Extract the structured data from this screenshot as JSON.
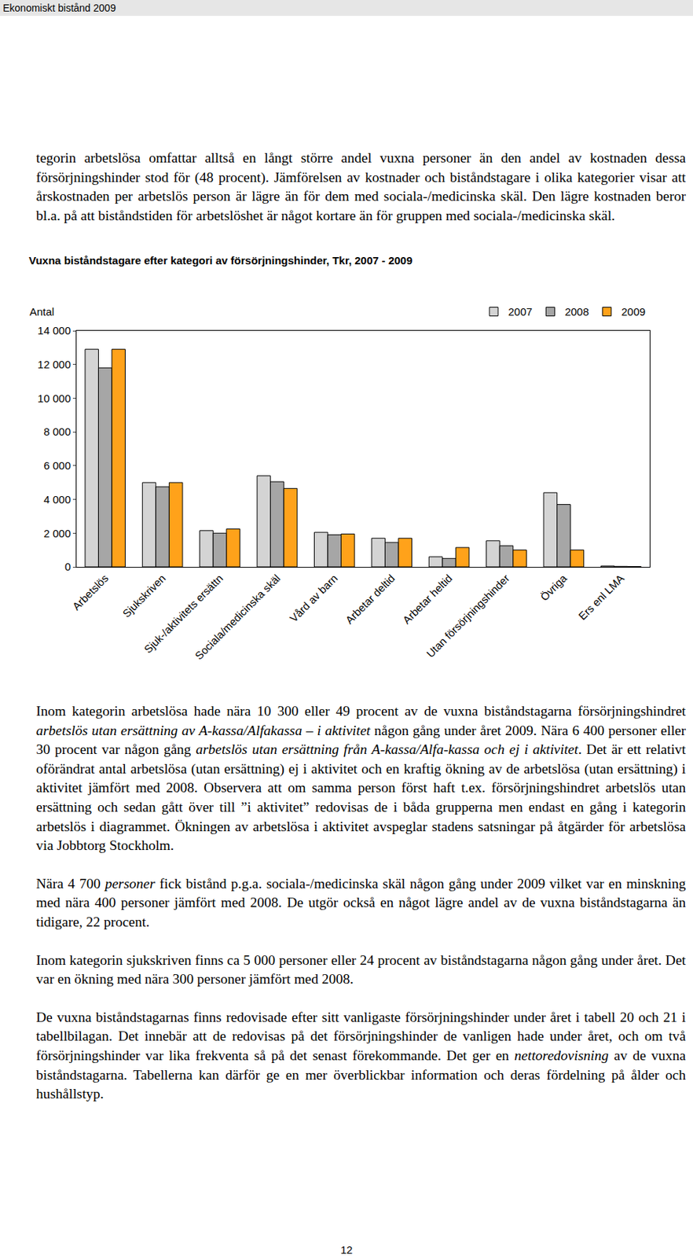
{
  "header": "Ekonomiskt bistånd 2009",
  "paragraphs": [
    [
      "tegorin arbetslösa omfattar alltså en långt större andel vuxna personer än den andel av kostnaden dessa försörjningshinder stod för (48 procent). Jämförelsen av kostnader och biståndstagare i olika kategorier visar att årskostnaden per arbetslös person är lägre än för dem med sociala-/medicinska skäl. Den lägre kostnaden beror bl.a. på att biståndstiden för arbetslöshet är något kortare än för gruppen med sociala-/medicinska skäl."
    ]
  ],
  "chart_data": {
    "type": "bar",
    "title": "Vuxna biståndstagare efter kategori av försörjningshinder, Tkr, 2007 - 2009",
    "y_label": "Antal",
    "categories": [
      "Arbetslös",
      "Sjukskriven",
      "Sjuk-/aktivitets ersättn",
      "Sociala/medicinska skäl",
      "Vård av barn",
      "Arbetar deltid",
      "Arbetar heltid",
      "Utan försörjningshinder",
      "Övriga",
      "Ers enl LMA"
    ],
    "series": [
      {
        "name": "2007",
        "color": "#d4d4d4",
        "values": [
          12900,
          5000,
          2150,
          5400,
          2050,
          1700,
          600,
          1550,
          4400,
          50
        ]
      },
      {
        "name": "2008",
        "color": "#a6a6a6",
        "values": [
          11800,
          4750,
          2000,
          5050,
          1900,
          1450,
          500,
          1250,
          3700,
          30
        ]
      },
      {
        "name": "2009",
        "color": "#ffa21a",
        "values": [
          12900,
          5000,
          2250,
          4650,
          1950,
          1700,
          1150,
          1000,
          1000,
          20
        ]
      }
    ],
    "ylim": [
      0,
      14000
    ],
    "yticks": [
      0,
      {
        "value": 2000,
        "label": "2 000"
      },
      {
        "value": 4000,
        "label": "4 000"
      },
      {
        "value": 6000,
        "label": "6 000"
      },
      {
        "value": 8000,
        "label": "8 000"
      },
      {
        "value": 10000,
        "label": "10 000"
      },
      {
        "value": 12000,
        "label": "12 000"
      },
      {
        "value": 14000,
        "label": "14 000"
      }
    ],
    "grid": false,
    "legend": "top-right"
  },
  "paragraphs_after": [
    [
      "Inom kategorin arbetslösa hade nära 10 300 eller 49 procent av de vuxna biståndstagarna försörjningshindret ",
      {
        "italic": "arbetslös utan ersättning av A-kassa/Alfakassa – i aktivitet"
      },
      " någon gång under året 2009. Nära 6 400 personer eller 30 procent var någon gång ",
      {
        "italic": "arbetslös utan ersättning från A-kassa/Alfa-kassa och ej i aktivitet"
      },
      ". Det är ett relativt oförändrat antal arbetslösa (utan ersättning) ej i aktivitet och en kraftig ökning av de arbetslösa (utan ersättning) i aktivitet jämfört med 2008. Observera att om samma person först haft t.ex. försörjningshindret arbetslös utan ersättning och sedan gått över till ”i aktivitet” redovisas de i båda grupperna men endast en gång i kategorin arbetslös i diagrammet. Ökningen av arbetslösa i aktivitet avspeglar stadens satsningar på åtgärder för arbetslösa via Jobbtorg Stockholm."
    ],
    [
      "Nära 4 700 ",
      {
        "italic": "personer"
      },
      " fick bistånd p.g.a. sociala-/medicinska skäl någon gång under 2009 vilket var en minskning med nära 400 personer jämfört med 2008. De utgör också en något lägre andel av de vuxna biståndstagarna än tidigare, 22 procent."
    ],
    [
      "Inom kategorin sjukskriven finns ca 5 000 personer eller 24 procent av biståndstagarna någon gång under året. Det var en ökning med nära 300 personer jämfört med 2008."
    ],
    [
      "De vuxna biståndstagarnas finns redovisade efter sitt vanligaste försörjningshinder under året i tabell 20 och 21 i tabellbilagan. Det innebär att de redovisas på det försörjningshinder de vanligen hade under året, och om två försörjningshinder var lika frekventa så på det senast förekommande. Det ger en ",
      {
        "italic": "nettoredovisning"
      },
      " av de vuxna biståndstagarna. Tabellerna kan därför ge en mer överblickbar information och deras fördelning på ålder och hushållstyp."
    ]
  ],
  "page_number": 12
}
